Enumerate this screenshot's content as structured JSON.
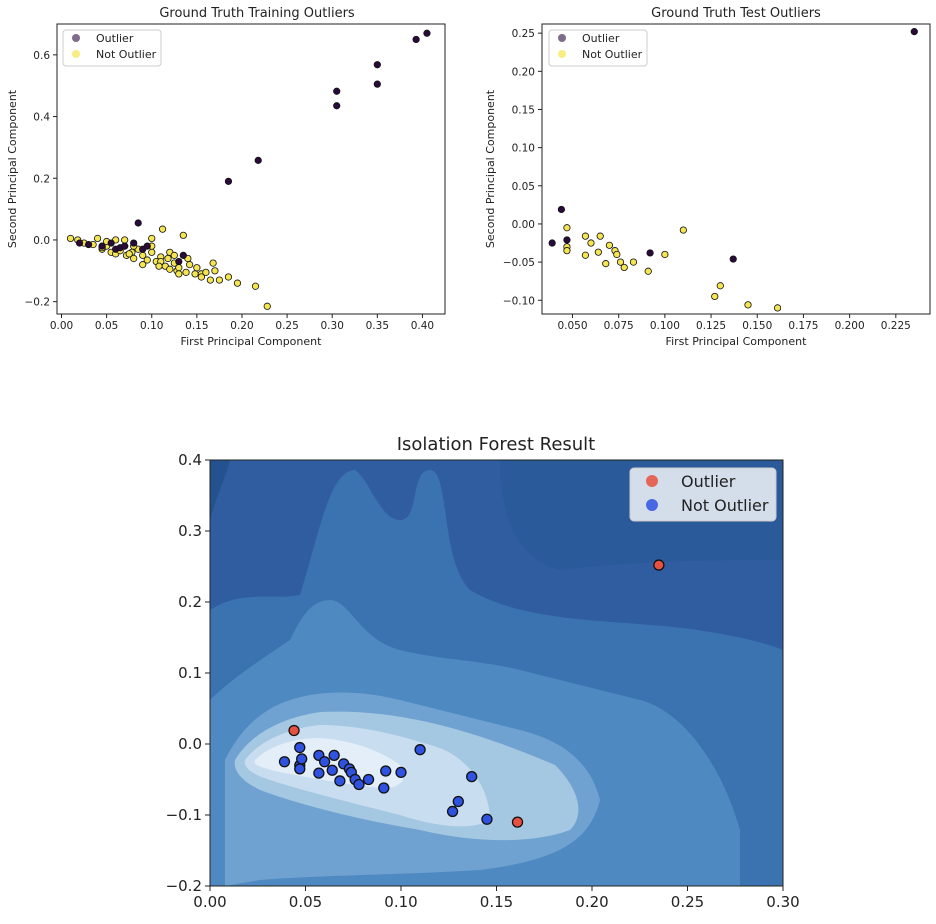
{
  "chart_data": [
    {
      "type": "scatter",
      "title": "Ground Truth Training Outliers",
      "xlabel": "First Principal Component",
      "ylabel": "Second Principal Component",
      "xlim": [
        -0.005,
        0.425
      ],
      "ylim": [
        -0.24,
        0.7
      ],
      "xticks": [
        "0.00",
        "0.05",
        "0.10",
        "0.15",
        "0.20",
        "0.25",
        "0.30",
        "0.35",
        "0.40"
      ],
      "yticks": [
        "−0.2",
        "0.0",
        "0.2",
        "0.4",
        "0.6"
      ],
      "legend_position": "top-left",
      "colors": {
        "outlier": "#2a0a3a",
        "not_outlier": "#f4e551"
      },
      "series": [
        {
          "name": "Outlier",
          "points": [
            [
              0.02,
              -0.01
            ],
            [
              0.03,
              -0.015
            ],
            [
              0.045,
              -0.02
            ],
            [
              0.055,
              -0.01
            ],
            [
              0.06,
              -0.03
            ],
            [
              0.065,
              -0.025
            ],
            [
              0.07,
              -0.02
            ],
            [
              0.08,
              -0.01
            ],
            [
              0.085,
              0.055
            ],
            [
              0.09,
              -0.03
            ],
            [
              0.095,
              -0.02
            ],
            [
              0.135,
              -0.05
            ],
            [
              0.13,
              -0.07
            ],
            [
              0.185,
              0.19
            ],
            [
              0.218,
              0.258
            ],
            [
              0.305,
              0.435
            ],
            [
              0.305,
              0.482
            ],
            [
              0.35,
              0.505
            ],
            [
              0.35,
              0.568
            ],
            [
              0.393,
              0.65
            ],
            [
              0.405,
              0.67
            ]
          ]
        },
        {
          "name": "Not Outlier",
          "points": [
            [
              0.01,
              0.005
            ],
            [
              0.018,
              0.0
            ],
            [
              0.025,
              -0.01
            ],
            [
              0.035,
              -0.015
            ],
            [
              0.04,
              0.005
            ],
            [
              0.045,
              -0.03
            ],
            [
              0.05,
              -0.02
            ],
            [
              0.055,
              -0.04
            ],
            [
              0.06,
              0.0
            ],
            [
              0.06,
              -0.045
            ],
            [
              0.065,
              -0.035
            ],
            [
              0.07,
              -0.02
            ],
            [
              0.072,
              -0.05
            ],
            [
              0.078,
              -0.04
            ],
            [
              0.08,
              -0.06
            ],
            [
              0.085,
              -0.03
            ],
            [
              0.09,
              -0.05
            ],
            [
              0.095,
              -0.065
            ],
            [
              0.1,
              -0.04
            ],
            [
              0.1,
              0.005
            ],
            [
              0.105,
              -0.07
            ],
            [
              0.11,
              -0.055
            ],
            [
              0.112,
              0.035
            ],
            [
              0.115,
              -0.085
            ],
            [
              0.118,
              -0.06
            ],
            [
              0.12,
              -0.095
            ],
            [
              0.125,
              -0.075
            ],
            [
              0.128,
              -0.1
            ],
            [
              0.13,
              -0.09
            ],
            [
              0.135,
              0.015
            ],
            [
              0.138,
              -0.105
            ],
            [
              0.142,
              -0.08
            ],
            [
              0.148,
              -0.11
            ],
            [
              0.15,
              -0.09
            ],
            [
              0.155,
              -0.11
            ],
            [
              0.16,
              -0.105
            ],
            [
              0.168,
              -0.075
            ],
            [
              0.17,
              -0.1
            ],
            [
              0.175,
              -0.13
            ],
            [
              0.185,
              -0.12
            ],
            [
              0.195,
              -0.14
            ],
            [
              0.215,
              -0.15
            ],
            [
              0.228,
              -0.215
            ],
            [
              0.165,
              -0.13
            ],
            [
              0.14,
              -0.06
            ],
            [
              0.12,
              -0.04
            ],
            [
              0.1,
              -0.02
            ],
            [
              0.08,
              -0.02
            ],
            [
              0.07,
              0.0
            ],
            [
              0.05,
              -0.005
            ],
            [
              0.09,
              -0.08
            ],
            [
              0.11,
              -0.07
            ],
            [
              0.125,
              -0.05
            ],
            [
              0.045,
              -0.025
            ],
            [
              0.075,
              -0.045
            ],
            [
              0.13,
              -0.11
            ],
            [
              0.155,
              -0.12
            ],
            [
              0.108,
              -0.085
            ]
          ]
        }
      ]
    },
    {
      "type": "scatter",
      "title": "Ground Truth Test Outliers",
      "xlabel": "First Principal Component",
      "ylabel": "Second Principal Component",
      "xlim": [
        0.0335,
        0.2435
      ],
      "ylim": [
        -0.118,
        0.262
      ],
      "xticks": [
        "0.050",
        "0.075",
        "0.100",
        "0.125",
        "0.150",
        "0.175",
        "0.200",
        "0.225"
      ],
      "yticks": [
        "−0.10",
        "−0.05",
        "0.00",
        "0.05",
        "0.10",
        "0.15",
        "0.20",
        "0.25"
      ],
      "legend_position": "top-left",
      "colors": {
        "outlier": "#2a0a3a",
        "not_outlier": "#f4e551"
      },
      "series": [
        {
          "name": "Outlier",
          "points": [
            [
              0.039,
              -0.025
            ],
            [
              0.044,
              0.019
            ],
            [
              0.047,
              -0.021
            ],
            [
              0.092,
              -0.038
            ],
            [
              0.137,
              -0.046
            ],
            [
              0.235,
              0.252
            ]
          ]
        },
        {
          "name": "Not Outlier",
          "points": [
            [
              0.047,
              -0.005
            ],
            [
              0.047,
              -0.03
            ],
            [
              0.047,
              -0.035
            ],
            [
              0.057,
              -0.016
            ],
            [
              0.057,
              -0.041
            ],
            [
              0.06,
              -0.025
            ],
            [
              0.064,
              -0.037
            ],
            [
              0.065,
              -0.016
            ],
            [
              0.068,
              -0.052
            ],
            [
              0.07,
              -0.028
            ],
            [
              0.073,
              -0.035
            ],
            [
              0.074,
              -0.04
            ],
            [
              0.076,
              -0.05
            ],
            [
              0.078,
              -0.057
            ],
            [
              0.083,
              -0.05
            ],
            [
              0.091,
              -0.062
            ],
            [
              0.1,
              -0.04
            ],
            [
              0.11,
              -0.008
            ],
            [
              0.127,
              -0.095
            ],
            [
              0.13,
              -0.081
            ],
            [
              0.145,
              -0.106
            ],
            [
              0.161,
              -0.11
            ]
          ]
        }
      ]
    },
    {
      "type": "scatter",
      "title": "Isolation Forest Result",
      "xlabel": "",
      "ylabel": "",
      "xlim": [
        0.0,
        0.3
      ],
      "ylim": [
        -0.2,
        0.4
      ],
      "xticks": [
        "0.00",
        "0.05",
        "0.10",
        "0.15",
        "0.20",
        "0.25",
        "0.30"
      ],
      "yticks": [
        "−0.2",
        "−0.1",
        "0.0",
        "0.1",
        "0.2",
        "0.3",
        "0.4"
      ],
      "legend_position": "top-right",
      "background": "decision-function contour (Blues colormap)",
      "colors": {
        "outlier": "#e8503f",
        "not_outlier": "#2f52e0"
      },
      "series": [
        {
          "name": "Outlier",
          "points": [
            [
              0.044,
              0.019
            ],
            [
              0.161,
              -0.11
            ],
            [
              0.235,
              0.252
            ]
          ]
        },
        {
          "name": "Not Outlier",
          "points": [
            [
              0.039,
              -0.025
            ],
            [
              0.047,
              -0.005
            ],
            [
              0.047,
              -0.03
            ],
            [
              0.047,
              -0.035
            ],
            [
              0.048,
              -0.021
            ],
            [
              0.057,
              -0.016
            ],
            [
              0.057,
              -0.041
            ],
            [
              0.06,
              -0.025
            ],
            [
              0.064,
              -0.037
            ],
            [
              0.065,
              -0.016
            ],
            [
              0.068,
              -0.052
            ],
            [
              0.07,
              -0.028
            ],
            [
              0.073,
              -0.035
            ],
            [
              0.074,
              -0.04
            ],
            [
              0.076,
              -0.05
            ],
            [
              0.078,
              -0.057
            ],
            [
              0.083,
              -0.05
            ],
            [
              0.091,
              -0.062
            ],
            [
              0.092,
              -0.038
            ],
            [
              0.1,
              -0.04
            ],
            [
              0.11,
              -0.008
            ],
            [
              0.127,
              -0.095
            ],
            [
              0.13,
              -0.081
            ],
            [
              0.137,
              -0.046
            ],
            [
              0.145,
              -0.106
            ]
          ]
        }
      ]
    }
  ]
}
